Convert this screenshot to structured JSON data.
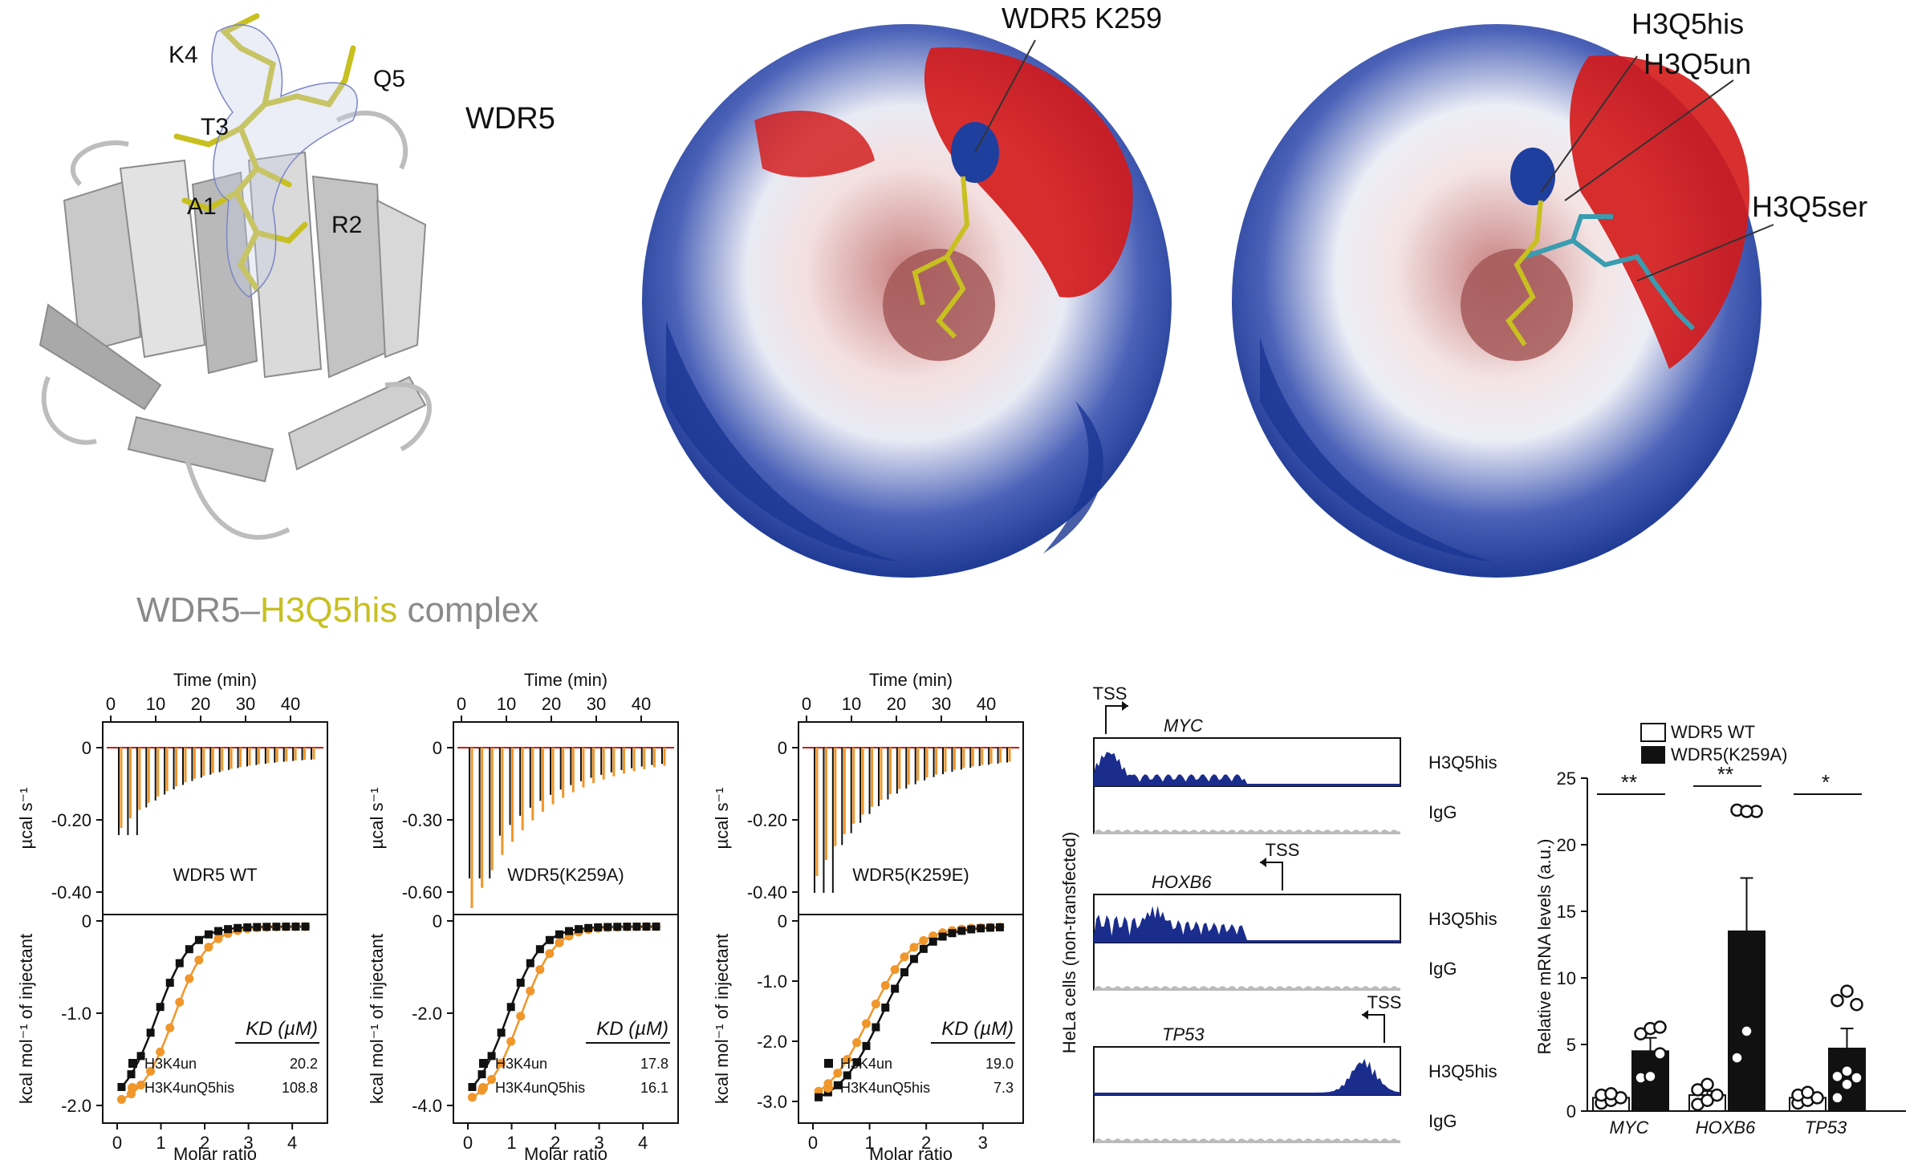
{
  "structures": {
    "panel1": {
      "residue_labels": [
        "K4",
        "Q5",
        "T3",
        "A1",
        "R2"
      ],
      "protein_label": "WDR5",
      "caption_prefix": "WDR5–",
      "caption_highlight": "H3Q5his",
      "caption_suffix": " complex"
    },
    "panel2": {
      "label": "WDR5 K259"
    },
    "panel3": {
      "labels": [
        "H3Q5his",
        "H3Q5un",
        "H3Q5ser"
      ]
    },
    "colors": {
      "h3q5his": "#c8c020",
      "h3q5un": "#808080",
      "h3q5ser": "#3a9cb0",
      "positive": "#1f3f9f",
      "negative": "#d41818"
    }
  },
  "itc": {
    "top_xlabel": "Time (min)",
    "bottom_xlabel": "Molar ratio",
    "top_ylabel": "µcal s⁻¹",
    "bottom_ylabel": "kcal mol⁻¹ of injectant",
    "kd_header": "KD (µM)",
    "series_colors": {
      "un": "#111111",
      "q5his": "#f0962a",
      "baseline": "#cc1a1a"
    },
    "panels": [
      {
        "title": "WDR5 WT",
        "time_ticks": [
          "0",
          "10",
          "20",
          "30",
          "40"
        ],
        "top_ticks": [
          "0",
          "-0.20",
          "-0.40"
        ],
        "bottom_ticks": [
          "0",
          "-1.0",
          "-2.0"
        ],
        "ratio_ticks": [
          "0",
          "1",
          "2",
          "3",
          "4"
        ],
        "legend": [
          {
            "name": "H3K4un",
            "kd": "20.2"
          },
          {
            "name": "H3K4unQ5his",
            "kd": "108.8"
          }
        ]
      },
      {
        "title": "WDR5(K259A)",
        "time_ticks": [
          "0",
          "10",
          "20",
          "30",
          "40"
        ],
        "top_ticks": [
          "0",
          "-0.30",
          "-0.60"
        ],
        "bottom_ticks": [
          "0",
          "-2.0",
          "-4.0"
        ],
        "ratio_ticks": [
          "0",
          "1",
          "2",
          "3",
          "4"
        ],
        "legend": [
          {
            "name": "H3K4un",
            "kd": "17.8"
          },
          {
            "name": "H3K4unQ5his",
            "kd": "16.1"
          }
        ]
      },
      {
        "title": "WDR5(K259E)",
        "time_ticks": [
          "0",
          "10",
          "20",
          "30",
          "40"
        ],
        "top_ticks": [
          "0",
          "-0.20",
          "-0.40"
        ],
        "bottom_ticks": [
          "0",
          "-1.0",
          "-2.0",
          "-3.0"
        ],
        "ratio_ticks": [
          "0",
          "1",
          "2",
          "3"
        ],
        "legend": [
          {
            "name": "H3K4un",
            "kd": "19.0"
          },
          {
            "name": "H3K4unQ5his",
            "kd": "7.3"
          }
        ]
      }
    ]
  },
  "tracks": {
    "ylabel": "HeLa cells (non-transfected)",
    "tss": "TSS",
    "genes": [
      "MYC",
      "HOXB6",
      "TP53"
    ],
    "track_labels": [
      "H3Q5his",
      "IgG"
    ],
    "colors": {
      "signal": "#1a2c8c",
      "igg": "#bbbbbb"
    }
  },
  "chart_data": {
    "type": "bar",
    "categories": [
      "MYC",
      "HOXB6",
      "TP53"
    ],
    "series": [
      {
        "name": "WDR5 WT",
        "values": [
          1.0,
          1.2,
          1.0
        ],
        "errors": [
          0.2,
          0.3,
          0.2
        ],
        "points": [
          [
            0.6,
            0.8,
            1.0,
            1.2,
            1.3
          ],
          [
            0.5,
            0.8,
            1.2,
            1.6,
            2.0
          ],
          [
            0.6,
            0.8,
            1.0,
            1.2,
            1.4
          ]
        ]
      },
      {
        "name": "WDR5(K259A)",
        "values": [
          4.5,
          13.5,
          4.7
        ],
        "errors": [
          1.0,
          4.0,
          1.5
        ],
        "points": [
          [
            2.5,
            2.6,
            4.3,
            5.8,
            6.2,
            6.3
          ],
          [
            4.0,
            6.0,
            22.5,
            22.6,
            22.5
          ],
          [
            1.0,
            2.0,
            2.5,
            2.6,
            3.0,
            8.0,
            8.3,
            9.0
          ]
        ]
      }
    ],
    "significance": [
      "**",
      "**",
      "*"
    ],
    "ylabel": "Relative mRNA levels (a.u.)",
    "y_ticks": [
      "0",
      "5",
      "10",
      "15",
      "20",
      "25"
    ],
    "ylim": [
      0,
      25
    ]
  }
}
